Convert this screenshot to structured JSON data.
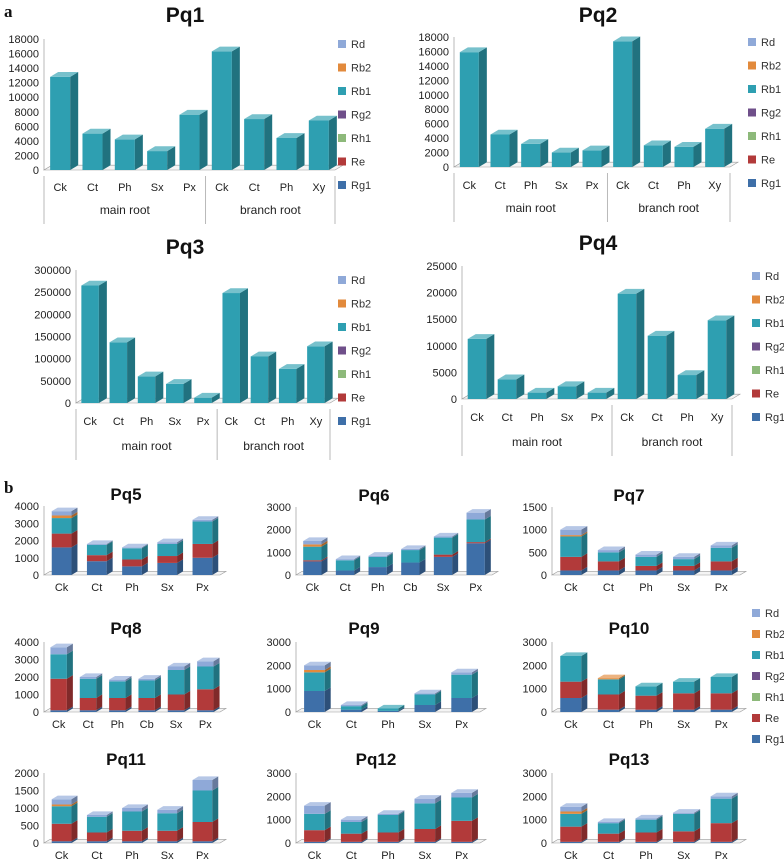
{
  "panel_labels": [
    "a",
    "b"
  ],
  "legend_entries": [
    "Rd",
    "Rb2",
    "Rb1",
    "Rg2",
    "Rh1",
    "Re",
    "Rg1"
  ],
  "legend_colors": {
    "Rd": "#8fa9d8",
    "Rb2": "#e28a3c",
    "Rb1": "#2e9fb1",
    "Rg2": "#6f4f8a",
    "Rh1": "#8db97a",
    "Re": "#b23a3a",
    "Rg1": "#3e6fa8"
  },
  "chart_data": [
    {
      "id": "Pq1",
      "type": "bar",
      "title": "Pq1",
      "categories": [
        "Ck",
        "Ct",
        "Ph",
        "Sx",
        "Px",
        "Ck",
        "Ct",
        "Ph",
        "Xy"
      ],
      "groups": [
        {
          "label": "main root",
          "count": 5
        },
        {
          "label": "branch root",
          "count": 4
        }
      ],
      "ylim": [
        0,
        18000
      ],
      "yticks": [
        0,
        2000,
        4000,
        6000,
        8000,
        10000,
        12000,
        14000,
        16000,
        18000
      ],
      "series": [
        {
          "name": "Rb1",
          "values": [
            12800,
            5000,
            4200,
            2600,
            7600,
            16300,
            7000,
            4400,
            6800
          ]
        }
      ]
    },
    {
      "id": "Pq2",
      "type": "bar",
      "title": "Pq2",
      "categories": [
        "Ck",
        "Ct",
        "Ph",
        "Sx",
        "Px",
        "Ck",
        "Ct",
        "Ph",
        "Xy"
      ],
      "groups": [
        {
          "label": "main root",
          "count": 5
        },
        {
          "label": "branch root",
          "count": 4
        }
      ],
      "ylim": [
        0,
        18000
      ],
      "yticks": [
        0,
        2000,
        4000,
        6000,
        8000,
        10000,
        12000,
        14000,
        16000,
        18000
      ],
      "series": [
        {
          "name": "Rb1",
          "values": [
            15900,
            4500,
            3200,
            2000,
            2300,
            17400,
            3000,
            2800,
            5300
          ]
        }
      ]
    },
    {
      "id": "Pq3",
      "type": "bar",
      "title": "Pq3",
      "categories": [
        "Ck",
        "Ct",
        "Ph",
        "Sx",
        "Px",
        "Ck",
        "Ct",
        "Ph",
        "Xy"
      ],
      "groups": [
        {
          "label": "main root",
          "count": 5
        },
        {
          "label": "branch root",
          "count": 4
        }
      ],
      "ylim": [
        0,
        300000
      ],
      "yticks": [
        0,
        50000,
        100000,
        150000,
        200000,
        250000,
        300000
      ],
      "series": [
        {
          "name": "Rb1",
          "values": [
            265000,
            137000,
            60000,
            43000,
            12000,
            248000,
            105000,
            77000,
            128000
          ]
        }
      ]
    },
    {
      "id": "Pq4",
      "type": "bar",
      "title": "Pq4",
      "categories": [
        "Ck",
        "Ct",
        "Ph",
        "Sx",
        "Px",
        "Ck",
        "Ct",
        "Ph",
        "Xy"
      ],
      "groups": [
        {
          "label": "main root",
          "count": 5
        },
        {
          "label": "branch root",
          "count": 4
        }
      ],
      "ylim": [
        0,
        25000
      ],
      "yticks": [
        0,
        5000,
        10000,
        15000,
        20000,
        25000
      ],
      "series": [
        {
          "name": "Rb1",
          "values": [
            11300,
            3700,
            1200,
            2400,
            1200,
            19800,
            11900,
            4500,
            14800
          ]
        }
      ]
    },
    {
      "id": "Pq5",
      "type": "bar",
      "title": "Pq5",
      "categories": [
        "Ck",
        "Ct",
        "Ph",
        "Sx",
        "Px"
      ],
      "ylim": [
        0,
        4000
      ],
      "yticks": [
        0,
        1000,
        2000,
        3000,
        4000
      ],
      "series": [
        {
          "name": "Rg1",
          "values": [
            1600,
            800,
            500,
            700,
            1000
          ]
        },
        {
          "name": "Re",
          "values": [
            800,
            350,
            400,
            400,
            800
          ]
        },
        {
          "name": "Rh1",
          "values": [
            0,
            0,
            0,
            0,
            0
          ]
        },
        {
          "name": "Rg2",
          "values": [
            0,
            0,
            0,
            0,
            0
          ]
        },
        {
          "name": "Rb1",
          "values": [
            900,
            600,
            650,
            700,
            1300
          ]
        },
        {
          "name": "Rb2",
          "values": [
            150,
            0,
            0,
            0,
            0
          ]
        },
        {
          "name": "Rd",
          "values": [
            250,
            50,
            50,
            100,
            100
          ]
        }
      ]
    },
    {
      "id": "Pq6",
      "type": "bar",
      "title": "Pq6",
      "categories": [
        "Ck",
        "Ct",
        "Ph",
        "Cb",
        "Sx",
        "Px"
      ],
      "ylim": [
        0,
        3000
      ],
      "yticks": [
        0,
        1000,
        2000,
        3000
      ],
      "series": [
        {
          "name": "Rg1",
          "values": [
            600,
            200,
            350,
            550,
            800,
            1400
          ]
        },
        {
          "name": "Re",
          "values": [
            50,
            0,
            0,
            0,
            100,
            50
          ]
        },
        {
          "name": "Rh1",
          "values": [
            0,
            0,
            0,
            0,
            0,
            0
          ]
        },
        {
          "name": "Rg2",
          "values": [
            0,
            0,
            0,
            0,
            0,
            0
          ]
        },
        {
          "name": "Rb1",
          "values": [
            600,
            450,
            450,
            550,
            750,
            1000
          ]
        },
        {
          "name": "Rb2",
          "values": [
            100,
            0,
            0,
            0,
            0,
            0
          ]
        },
        {
          "name": "Rd",
          "values": [
            150,
            50,
            50,
            50,
            50,
            300
          ]
        }
      ]
    },
    {
      "id": "Pq7",
      "type": "bar",
      "title": "Pq7",
      "categories": [
        "Ck",
        "Ct",
        "Ph",
        "Sx",
        "Px"
      ],
      "ylim": [
        0,
        1500
      ],
      "yticks": [
        0,
        500,
        1000,
        1500
      ],
      "series": [
        {
          "name": "Rg1",
          "values": [
            100,
            100,
            100,
            100,
            100
          ]
        },
        {
          "name": "Re",
          "values": [
            300,
            200,
            100,
            100,
            200
          ]
        },
        {
          "name": "Rh1",
          "values": [
            0,
            0,
            0,
            0,
            0
          ]
        },
        {
          "name": "Rg2",
          "values": [
            0,
            0,
            0,
            0,
            0
          ]
        },
        {
          "name": "Rb1",
          "values": [
            450,
            200,
            200,
            150,
            300
          ]
        },
        {
          "name": "Rb2",
          "values": [
            30,
            0,
            0,
            0,
            0
          ]
        },
        {
          "name": "Rd",
          "values": [
            120,
            50,
            50,
            50,
            50
          ]
        }
      ]
    },
    {
      "id": "Pq8",
      "type": "bar",
      "title": "Pq8",
      "categories": [
        "Ck",
        "Ct",
        "Ph",
        "Cb",
        "Sx",
        "Px"
      ],
      "ylim": [
        0,
        4000
      ],
      "yticks": [
        0,
        1000,
        2000,
        3000,
        4000
      ],
      "series": [
        {
          "name": "Rg1",
          "values": [
            100,
            100,
            100,
            100,
            100,
            100
          ]
        },
        {
          "name": "Re",
          "values": [
            1800,
            700,
            700,
            700,
            900,
            1200
          ]
        },
        {
          "name": "Rh1",
          "values": [
            0,
            0,
            0,
            0,
            0,
            0
          ]
        },
        {
          "name": "Rg2",
          "values": [
            0,
            0,
            0,
            0,
            0,
            0
          ]
        },
        {
          "name": "Rb1",
          "values": [
            1400,
            1100,
            950,
            1000,
            1400,
            1300
          ]
        },
        {
          "name": "Rb2",
          "values": [
            0,
            0,
            0,
            0,
            0,
            0
          ]
        },
        {
          "name": "Rd",
          "values": [
            400,
            100,
            100,
            100,
            200,
            300
          ]
        }
      ]
    },
    {
      "id": "Pq9",
      "type": "bar",
      "title": "Pq9",
      "categories": [
        "Ck",
        "Ct",
        "Ph",
        "Sx",
        "Px"
      ],
      "ylim": [
        0,
        3000
      ],
      "yticks": [
        0,
        1000,
        2000,
        3000
      ],
      "series": [
        {
          "name": "Rg1",
          "values": [
            900,
            100,
            50,
            300,
            600
          ]
        },
        {
          "name": "Re",
          "values": [
            0,
            0,
            0,
            0,
            0
          ]
        },
        {
          "name": "Rh1",
          "values": [
            0,
            0,
            0,
            0,
            0
          ]
        },
        {
          "name": "Rg2",
          "values": [
            0,
            0,
            0,
            0,
            0
          ]
        },
        {
          "name": "Rb1",
          "values": [
            800,
            150,
            100,
            450,
            1000
          ]
        },
        {
          "name": "Rb2",
          "values": [
            100,
            0,
            0,
            0,
            0
          ]
        },
        {
          "name": "Rd",
          "values": [
            200,
            50,
            0,
            50,
            100
          ]
        }
      ]
    },
    {
      "id": "Pq10",
      "type": "bar",
      "title": "Pq10",
      "categories": [
        "Ck",
        "Ct",
        "Ph",
        "Sx",
        "Px"
      ],
      "ylim": [
        0,
        3000
      ],
      "yticks": [
        0,
        1000,
        2000,
        3000
      ],
      "series": [
        {
          "name": "Rg1",
          "values": [
            600,
            100,
            100,
            100,
            100
          ]
        },
        {
          "name": "Re",
          "values": [
            700,
            650,
            600,
            700,
            700
          ]
        },
        {
          "name": "Rh1",
          "values": [
            0,
            0,
            0,
            0,
            0
          ]
        },
        {
          "name": "Rg2",
          "values": [
            0,
            0,
            0,
            0,
            0
          ]
        },
        {
          "name": "Rb1",
          "values": [
            1100,
            650,
            400,
            500,
            700
          ]
        },
        {
          "name": "Rb2",
          "values": [
            0,
            50,
            0,
            0,
            0
          ]
        },
        {
          "name": "Rd",
          "values": [
            0,
            0,
            0,
            0,
            0
          ]
        }
      ]
    },
    {
      "id": "Pq11",
      "type": "bar",
      "title": "Pq11",
      "categories": [
        "Ck",
        "Ct",
        "Ph",
        "Sx",
        "Px"
      ],
      "ylim": [
        0,
        2000
      ],
      "yticks": [
        0,
        500,
        1000,
        1500,
        2000
      ],
      "series": [
        {
          "name": "Rg1",
          "values": [
            50,
            50,
            50,
            50,
            50
          ]
        },
        {
          "name": "Re",
          "values": [
            500,
            250,
            300,
            300,
            550
          ]
        },
        {
          "name": "Rh1",
          "values": [
            0,
            0,
            0,
            0,
            0
          ]
        },
        {
          "name": "Rg2",
          "values": [
            0,
            0,
            0,
            0,
            0
          ]
        },
        {
          "name": "Rb1",
          "values": [
            500,
            450,
            550,
            500,
            900
          ]
        },
        {
          "name": "Rb2",
          "values": [
            50,
            0,
            0,
            0,
            0
          ]
        },
        {
          "name": "Rd",
          "values": [
            150,
            50,
            100,
            100,
            300
          ]
        }
      ]
    },
    {
      "id": "Pq12",
      "type": "bar",
      "title": "Pq12",
      "categories": [
        "Ck",
        "Ct",
        "Ph",
        "Sx",
        "Px"
      ],
      "ylim": [
        0,
        3000
      ],
      "yticks": [
        0,
        1000,
        2000,
        3000
      ],
      "series": [
        {
          "name": "Rg1",
          "values": [
            50,
            50,
            50,
            50,
            50
          ]
        },
        {
          "name": "Re",
          "values": [
            500,
            350,
            400,
            550,
            900
          ]
        },
        {
          "name": "Rh1",
          "values": [
            0,
            0,
            0,
            0,
            0
          ]
        },
        {
          "name": "Rg2",
          "values": [
            0,
            0,
            0,
            0,
            0
          ]
        },
        {
          "name": "Rb1",
          "values": [
            700,
            500,
            750,
            1100,
            1000
          ]
        },
        {
          "name": "Rb2",
          "values": [
            0,
            0,
            0,
            0,
            0
          ]
        },
        {
          "name": "Rd",
          "values": [
            350,
            100,
            50,
            200,
            200
          ]
        }
      ]
    },
    {
      "id": "Pq13",
      "type": "bar",
      "title": "Pq13",
      "categories": [
        "Ck",
        "Ct",
        "Ph",
        "Sx",
        "Px"
      ],
      "ylim": [
        0,
        3000
      ],
      "yticks": [
        0,
        1000,
        2000,
        3000
      ],
      "series": [
        {
          "name": "Rg1",
          "values": [
            50,
            50,
            50,
            50,
            50
          ]
        },
        {
          "name": "Re",
          "values": [
            650,
            350,
            400,
            450,
            800
          ]
        },
        {
          "name": "Rh1",
          "values": [
            0,
            0,
            0,
            0,
            0
          ]
        },
        {
          "name": "Rg2",
          "values": [
            0,
            0,
            0,
            0,
            0
          ]
        },
        {
          "name": "Rb1",
          "values": [
            550,
            450,
            550,
            750,
            1050
          ]
        },
        {
          "name": "Rb2",
          "values": [
            100,
            0,
            0,
            0,
            0
          ]
        },
        {
          "name": "Rd",
          "values": [
            200,
            50,
            50,
            50,
            100
          ]
        }
      ]
    }
  ]
}
